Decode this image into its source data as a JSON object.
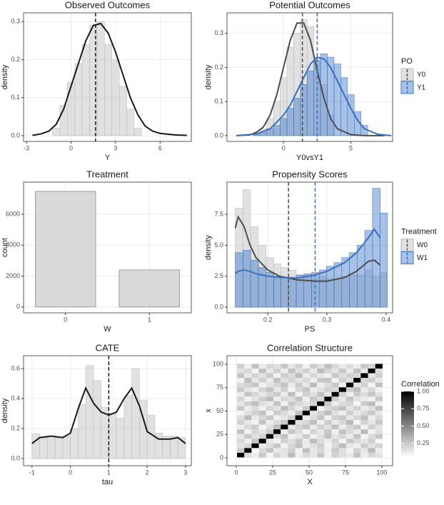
{
  "chart_data": [
    {
      "type": "histogram",
      "title": "Observed Outcomes",
      "xlabel": "Y",
      "ylabel": "density",
      "xlim": [
        -3.2,
        8.1
      ],
      "ylim": [
        -0.015,
        0.323
      ],
      "xticks": [
        -3,
        0,
        3,
        6
      ],
      "yticks": [
        {
          "value": 0,
          "label": "0.0"
        },
        0.1,
        0.2,
        0.3
      ],
      "grid": true,
      "series": [
        {
          "color": "#bdbdbd",
          "line_color": "#1a1a1a",
          "bins": [
            -1.25,
            -0.75,
            -0.25,
            0.25,
            0.75,
            1.25,
            1.75,
            2.25,
            2.75,
            3.25,
            3.75,
            4.25,
            4.75
          ],
          "values": [
            0.02,
            0.08,
            0.14,
            0.19,
            0.24,
            0.29,
            0.3,
            0.24,
            0.2,
            0.13,
            0.07,
            0.02
          ],
          "density_x": [
            -2.6,
            -2,
            -1.5,
            -1,
            -0.5,
            0,
            0.5,
            1,
            1.5,
            2,
            2.5,
            3,
            3.5,
            4,
            4.5,
            5,
            5.5,
            6,
            7,
            7.8
          ],
          "density_y": [
            0.001,
            0.005,
            0.012,
            0.03,
            0.07,
            0.13,
            0.19,
            0.25,
            0.29,
            0.295,
            0.27,
            0.22,
            0.16,
            0.1,
            0.055,
            0.025,
            0.012,
            0.006,
            0.002,
            0.001
          ],
          "vline": 1.65
        }
      ]
    },
    {
      "type": "histogram",
      "title": "Potential Outcomes",
      "xlabel": "Y0vsY1",
      "ylabel": "density",
      "xlim": [
        -4.2,
        8.1
      ],
      "ylim": [
        -0.017,
        0.36
      ],
      "xticks": [
        0,
        5
      ],
      "yticks": [
        {
          "value": 0,
          "label": "0.0"
        },
        0.1,
        0.2,
        0.3
      ],
      "grid": true,
      "legend_title": "PO",
      "series": [
        {
          "name": "Y0",
          "color": "#bdbdbd",
          "line_color": "#4d4d4d",
          "bins": [
            -2.25,
            -1.75,
            -1.25,
            -0.75,
            -0.25,
            0.25,
            0.75,
            1.25,
            1.75,
            2.25,
            2.75,
            3.25,
            3.75
          ],
          "values": [
            0.005,
            0.02,
            0.05,
            0.1,
            0.17,
            0.26,
            0.3,
            0.34,
            0.32,
            0.23,
            0.15,
            0.06
          ],
          "density_x": [
            -3.5,
            -2.5,
            -2,
            -1.5,
            -1,
            -0.5,
            0,
            0.5,
            1,
            1.5,
            2,
            2.5,
            3,
            3.5,
            4,
            5,
            6,
            7.5
          ],
          "density_y": [
            0,
            0.002,
            0.01,
            0.025,
            0.06,
            0.12,
            0.2,
            0.28,
            0.33,
            0.33,
            0.28,
            0.19,
            0.11,
            0.05,
            0.02,
            0.003,
            0,
            0
          ],
          "vline": 1.4
        },
        {
          "name": "Y1",
          "color": "#3b78c8",
          "line_color": "#3b70bf",
          "bins": [
            -2.25,
            -1.75,
            -1.25,
            -0.75,
            -0.25,
            0.25,
            0.75,
            1.25,
            1.75,
            2.25,
            2.75,
            3.25,
            3.75,
            4.25,
            4.75,
            5.25,
            5.75,
            6.25
          ],
          "values": [
            0.005,
            0.01,
            0.02,
            0.03,
            0.05,
            0.08,
            0.11,
            0.15,
            0.19,
            0.22,
            0.24,
            0.23,
            0.21,
            0.17,
            0.12,
            0.07,
            0.03
          ],
          "density_x": [
            -3.5,
            -2,
            -1,
            0,
            0.5,
            1,
            1.5,
            2,
            2.5,
            3,
            3.5,
            4,
            4.5,
            5,
            5.5,
            6,
            7,
            8
          ],
          "density_y": [
            0,
            0.005,
            0.02,
            0.06,
            0.09,
            0.13,
            0.17,
            0.21,
            0.23,
            0.225,
            0.2,
            0.16,
            0.12,
            0.08,
            0.045,
            0.02,
            0.004,
            0
          ],
          "vline": 2.5
        }
      ]
    },
    {
      "type": "bar",
      "title": "Treatment",
      "xlabel": "W",
      "ylabel": "count",
      "categories": [
        "0",
        "1"
      ],
      "values": [
        7480,
        2400
      ],
      "color": "#d9d9d9",
      "ylim": [
        -380,
        8080
      ],
      "yticks": [
        0,
        2000,
        4000,
        6000
      ],
      "grid": true
    },
    {
      "type": "histogram",
      "title": "Propensity Scores",
      "xlabel": "PS",
      "ylabel": "density",
      "xlim": [
        0.131,
        0.411
      ],
      "ylim": [
        -0.46,
        10.1
      ],
      "xticks": [
        0.2,
        0.3,
        0.4
      ],
      "yticks": [
        {
          "value": 0,
          "label": "0.0"
        },
        2.5,
        {
          "value": 5,
          "label": "5.0"
        },
        7.5
      ],
      "grid": true,
      "legend_title": "Treatment",
      "series": [
        {
          "name": "W0",
          "color": "#bdbdbd",
          "line_color": "#4d4d4d",
          "bins": [
            0.145,
            0.158,
            0.171,
            0.184,
            0.197,
            0.21,
            0.222,
            0.235,
            0.248,
            0.261,
            0.274,
            0.287,
            0.299,
            0.312,
            0.325,
            0.338,
            0.351,
            0.364,
            0.377,
            0.39,
            0.402
          ],
          "values": [
            8.0,
            9.5,
            6.5,
            5.0,
            4.0,
            3.5,
            3.2,
            3.0,
            2.6,
            2.6,
            2.4,
            2.5,
            2.3,
            2.2,
            2.5,
            2.6,
            2.6,
            3.0,
            2.5,
            2.8
          ],
          "density_x": [
            0.145,
            0.15,
            0.16,
            0.17,
            0.18,
            0.2,
            0.22,
            0.25,
            0.28,
            0.3,
            0.33,
            0.35,
            0.37,
            0.38,
            0.39
          ],
          "density_y": [
            6.4,
            7.3,
            6.5,
            5.0,
            4.0,
            3.0,
            2.5,
            2.2,
            2.1,
            2.1,
            2.4,
            2.9,
            3.7,
            3.8,
            3.4
          ],
          "vline": 0.235
        },
        {
          "name": "W1",
          "color": "#3b78c8",
          "line_color": "#3b70bf",
          "bins": [
            0.145,
            0.158,
            0.171,
            0.184,
            0.197,
            0.21,
            0.222,
            0.235,
            0.248,
            0.261,
            0.274,
            0.287,
            0.299,
            0.312,
            0.325,
            0.338,
            0.351,
            0.364,
            0.377,
            0.39,
            0.402
          ],
          "values": [
            4.4,
            4.6,
            3.8,
            3.2,
            2.8,
            2.5,
            2.4,
            2.3,
            2.6,
            2.7,
            2.8,
            3.0,
            3.3,
            3.6,
            4.0,
            4.4,
            5.0,
            6.2,
            9.6,
            7.6
          ],
          "density_x": [
            0.145,
            0.15,
            0.16,
            0.17,
            0.18,
            0.2,
            0.22,
            0.25,
            0.28,
            0.3,
            0.33,
            0.35,
            0.37,
            0.38,
            0.39
          ],
          "density_y": [
            2.7,
            2.9,
            3.0,
            2.9,
            2.7,
            2.5,
            2.4,
            2.35,
            2.6,
            2.9,
            3.6,
            4.4,
            5.6,
            6.3,
            5.6
          ],
          "vline": 0.28
        }
      ]
    },
    {
      "type": "histogram",
      "title": "CATE",
      "xlabel": "tau",
      "ylabel": "density",
      "xlim": [
        -1.22,
        3.15
      ],
      "ylim": [
        -0.048,
        0.686
      ],
      "xticks": [
        -1,
        0,
        1,
        2,
        3
      ],
      "yticks": [
        {
          "value": 0,
          "label": "0.0"
        },
        0.2,
        0.4,
        0.6
      ],
      "grid": true,
      "series": [
        {
          "color": "#bdbdbd",
          "line_color": "#1a1a1a",
          "bins": [
            -1,
            -0.8,
            -0.6,
            -0.4,
            -0.2,
            0,
            0.2,
            0.4,
            0.6,
            0.8,
            1,
            1.2,
            1.4,
            1.6,
            1.8,
            2,
            2.2,
            2.4,
            2.6,
            2.8,
            3
          ],
          "values": [
            0.165,
            0.14,
            0.14,
            0.14,
            0.15,
            0.2,
            0.36,
            0.62,
            0.52,
            0.34,
            0.3,
            0.27,
            0.42,
            0.6,
            0.39,
            0.29,
            0.17,
            0.15,
            0.15,
            0.14
          ],
          "density_x": [
            -1,
            -0.8,
            -0.5,
            -0.2,
            0,
            0.2,
            0.4,
            0.6,
            0.8,
            1,
            1.2,
            1.4,
            1.6,
            1.8,
            2,
            2.3,
            2.6,
            2.8,
            3
          ],
          "density_y": [
            0.1,
            0.14,
            0.15,
            0.14,
            0.17,
            0.33,
            0.47,
            0.37,
            0.31,
            0.29,
            0.31,
            0.4,
            0.47,
            0.35,
            0.18,
            0.13,
            0.13,
            0.14,
            0.1
          ],
          "vline": 1
        }
      ]
    },
    {
      "type": "heatmap",
      "title": "Correlation Structure",
      "xlabel": "X",
      "ylabel": "x",
      "xlim": [
        -6.4,
        107.4
      ],
      "ylim": [
        -8.4,
        109.2
      ],
      "xticks": [
        0,
        25,
        50,
        75,
        100
      ],
      "yticks": [
        0,
        25,
        50,
        75,
        100
      ],
      "grid": true,
      "legend_title": "Correlation",
      "color_low": "#ffffff",
      "color_high": "#000000",
      "colorbar_lim": [
        0.05,
        1
      ],
      "colorbar_ticks": [
        0.25,
        {
          "value": 0.5,
          "label": "0.50"
        },
        0.75,
        {
          "value": 1,
          "label": "1.00"
        }
      ],
      "cell_edges": [
        0.5,
        5.5,
        10.5,
        15.5,
        20.5,
        25.5,
        30.5,
        35.5,
        40.5,
        45.5,
        50.5,
        55.5,
        60.5,
        65.5,
        70.5,
        75.5,
        80.5,
        85.5,
        90.5,
        95.5,
        100.5
      ],
      "matrix": [
        [
          1,
          0.18,
          0.12,
          0.25,
          0.09,
          0.21,
          0.15,
          0.3,
          0.11,
          0.19,
          0.14,
          0.26,
          0.1,
          0.22,
          0.17,
          0.13,
          0.28,
          0.12,
          0.2,
          0.16
        ],
        [
          0.24,
          1,
          0.08,
          0.19,
          0.27,
          0.13,
          0.16,
          0.23,
          0.1,
          0.29,
          0.14,
          0.2,
          0.11,
          0.25,
          0.17,
          0.09,
          0.22,
          0.15,
          0.31,
          0.12
        ],
        [
          0.15,
          0.21,
          1,
          0.13,
          0.18,
          0.26,
          0.1,
          0.2,
          0.28,
          0.12,
          0.17,
          0.23,
          0.09,
          0.19,
          0.3,
          0.14,
          0.11,
          0.24,
          0.16,
          0.22
        ],
        [
          0.2,
          0.11,
          0.27,
          1,
          0.14,
          0.09,
          0.22,
          0.16,
          0.25,
          0.13,
          0.3,
          0.18,
          0.12,
          0.21,
          0.1,
          0.26,
          0.19,
          0.15,
          0.23,
          0.08
        ],
        [
          0.13,
          0.25,
          0.16,
          0.22,
          1,
          0.19,
          0.28,
          0.1,
          0.14,
          0.24,
          0.11,
          0.17,
          0.29,
          0.15,
          0.2,
          0.12,
          0.27,
          0.09,
          0.18,
          0.26
        ],
        [
          0.28,
          0.1,
          0.2,
          0.15,
          0.23,
          1,
          0.12,
          0.26,
          0.18,
          0.09,
          0.21,
          0.14,
          0.25,
          0.11,
          0.27,
          0.19,
          0.13,
          0.3,
          0.1,
          0.17
        ],
        [
          0.11,
          0.19,
          0.24,
          0.09,
          0.17,
          0.29,
          1,
          0.14,
          0.21,
          0.27,
          0.13,
          0.22,
          0.16,
          0.28,
          0.12,
          0.2,
          0.25,
          0.1,
          0.23,
          0.15
        ],
        [
          0.22,
          0.14,
          0.1,
          0.27,
          0.12,
          0.18,
          0.25,
          1,
          0.16,
          0.2,
          0.29,
          0.11,
          0.24,
          0.13,
          0.19,
          0.3,
          0.09,
          0.21,
          0.14,
          0.26
        ],
        [
          0.17,
          0.3,
          0.13,
          0.2,
          0.26,
          0.11,
          0.15,
          0.23,
          1,
          0.12,
          0.18,
          0.27,
          0.1,
          0.22,
          0.25,
          0.14,
          0.2,
          0.28,
          0.11,
          0.19
        ],
        [
          0.09,
          0.16,
          0.22,
          0.28,
          0.1,
          0.24,
          0.19,
          0.12,
          0.27,
          1,
          0.15,
          0.21,
          0.3,
          0.17,
          0.11,
          0.23,
          0.13,
          0.19,
          0.26,
          0.14
        ],
        [
          0.26,
          0.12,
          0.18,
          0.11,
          0.21,
          0.16,
          0.3,
          0.2,
          0.13,
          0.25,
          1,
          0.1,
          0.19,
          0.24,
          0.28,
          0.15,
          0.22,
          0.12,
          0.17,
          0.29
        ],
        [
          0.14,
          0.23,
          0.29,
          0.17,
          0.13,
          0.27,
          0.1,
          0.25,
          0.19,
          0.15,
          0.22,
          1,
          0.26,
          0.12,
          0.18,
          0.21,
          0.09,
          0.24,
          0.3,
          0.11
        ],
        [
          0.21,
          0.1,
          0.15,
          0.24,
          0.3,
          0.12,
          0.2,
          0.17,
          0.28,
          0.11,
          0.26,
          0.19,
          1,
          0.23,
          0.14,
          0.27,
          0.16,
          0.13,
          0.1,
          0.25
        ],
        [
          0.12,
          0.27,
          0.2,
          0.14,
          0.19,
          0.25,
          0.13,
          0.29,
          0.1,
          0.22,
          0.17,
          0.28,
          0.15,
          1,
          0.21,
          0.11,
          0.24,
          0.18,
          0.26,
          0.16
        ],
        [
          0.25,
          0.15,
          0.11,
          0.21,
          0.28,
          0.14,
          0.23,
          0.09,
          0.2,
          0.26,
          0.12,
          0.16,
          0.22,
          0.19,
          1,
          0.24,
          0.3,
          0.13,
          0.2,
          0.1
        ],
        [
          0.18,
          0.22,
          0.26,
          0.1,
          0.16,
          0.2,
          0.27,
          0.13,
          0.24,
          0.14,
          0.3,
          0.12,
          0.18,
          0.25,
          0.11,
          1,
          0.15,
          0.22,
          0.09,
          0.28
        ],
        [
          0.1,
          0.29,
          0.14,
          0.23,
          0.12,
          0.28,
          0.17,
          0.21,
          0.15,
          0.19,
          0.11,
          0.25,
          0.27,
          0.1,
          0.23,
          0.16,
          1,
          0.2,
          0.24,
          0.13
        ],
        [
          0.27,
          0.13,
          0.21,
          0.16,
          0.25,
          0.1,
          0.24,
          0.18,
          0.3,
          0.12,
          0.2,
          0.14,
          0.11,
          0.26,
          0.17,
          0.22,
          0.19,
          1,
          0.15,
          0.23
        ],
        [
          0.16,
          0.2,
          0.1,
          0.29,
          0.14,
          0.22,
          0.11,
          0.27,
          0.17,
          0.23,
          0.13,
          0.3,
          0.21,
          0.15,
          0.25,
          0.12,
          0.28,
          0.14,
          1,
          0.19
        ],
        [
          0.23,
          0.11,
          0.28,
          0.12,
          0.2,
          0.17,
          0.26,
          0.14,
          0.22,
          0.1,
          0.24,
          0.16,
          0.29,
          0.2,
          0.13,
          0.18,
          0.12,
          0.25,
          0.21,
          1
        ]
      ]
    }
  ]
}
